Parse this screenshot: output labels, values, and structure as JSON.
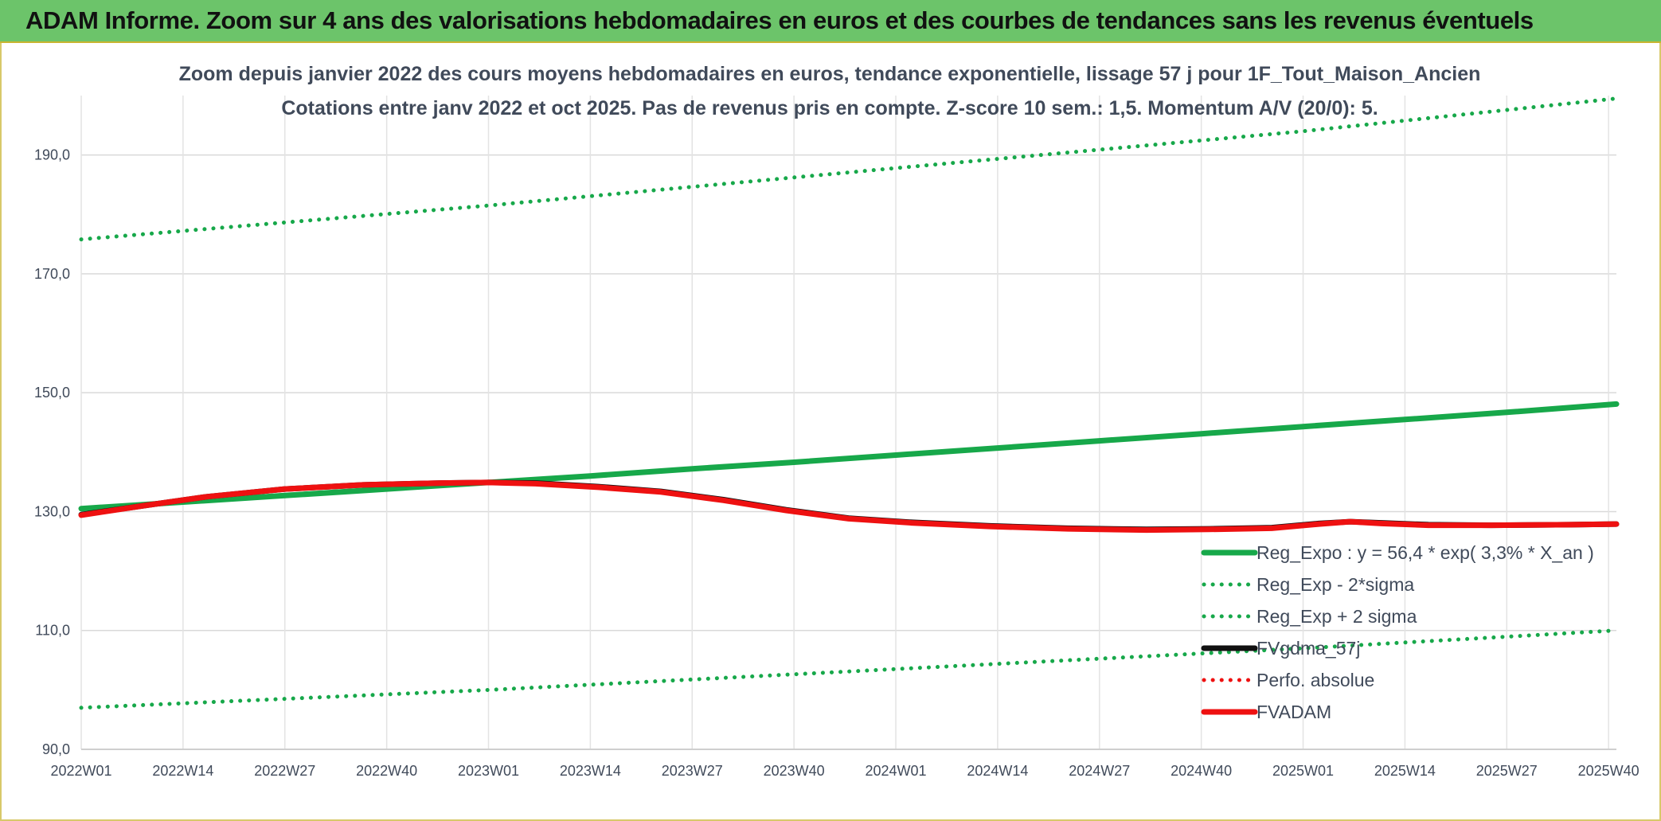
{
  "header": {
    "title": "ADAM Informe. Zoom sur 4 ans des valorisations hebdomadaires en euros et des courbes de tendances sans les revenus éventuels"
  },
  "colors": {
    "header_bg": "#6cc46a",
    "green": "#17a84a",
    "black": "#111111",
    "red": "#ee1111",
    "red_dotted": "#ee1111"
  },
  "chart_data": {
    "type": "line",
    "title_lines": [
      "Zoom depuis janvier 2022 des cours moyens hebdomadaires en euros, tendance exponentielle, lissage 57 j pour 1F_Tout_Maison_Ancien",
      "Cotations entre janv 2022 et oct 2025. Pas de revenus pris en compte. Z-score 10 sem.: 1,5. Momentum A/V (20/0): 5."
    ],
    "xlabel": "",
    "ylabel": "",
    "ylim": [
      90,
      200
    ],
    "y_ticks": [
      "90,0",
      "110,0",
      "130,0",
      "150,0",
      "170,0",
      "190,0"
    ],
    "y_tick_values": [
      90,
      110,
      130,
      150,
      170,
      190
    ],
    "x_range": [
      0,
      196
    ],
    "x_ticks": [
      "2022W01",
      "2022W14",
      "2022W27",
      "2022W40",
      "2023W01",
      "2023W14",
      "2023W27",
      "2023W40",
      "2024W01",
      "2024W14",
      "2024W27",
      "2024W40",
      "2025W01",
      "2025W14",
      "2025W27",
      "2025W40"
    ],
    "x_tick_weeks": [
      0,
      13,
      26,
      39,
      52,
      65,
      78,
      91,
      104,
      117,
      130,
      143,
      156,
      169,
      182,
      195
    ],
    "grid": true,
    "legend_position": "bottom-right",
    "series": [
      {
        "name": "Reg_Expo : y = 56,4 * exp( 3,3% *  X_an )",
        "style": "solid-thick",
        "color": "#17a84a",
        "x": [
          0,
          13,
          26,
          39,
          52,
          65,
          78,
          91,
          104,
          117,
          130,
          143,
          156,
          169,
          182,
          196
        ],
        "values": [
          130.5,
          131.6,
          132.7,
          133.8,
          134.9,
          136.0,
          137.2,
          138.3,
          139.5,
          140.7,
          141.9,
          143.1,
          144.3,
          145.5,
          146.7,
          148.1
        ]
      },
      {
        "name": "Reg_Exp - 2*sigma",
        "style": "dotted",
        "color": "#17a84a",
        "x": [
          0,
          52,
          104,
          156,
          196
        ],
        "values": [
          97.0,
          100.0,
          103.5,
          107.0,
          110.0
        ]
      },
      {
        "name": "Reg_Exp + 2 sigma",
        "style": "dotted",
        "color": "#17a84a",
        "x": [
          0,
          52,
          104,
          156,
          196
        ],
        "values": [
          175.8,
          181.5,
          187.8,
          194.0,
          199.5
        ]
      },
      {
        "name": "FVgdma_57j",
        "style": "solid-thick",
        "color": "#111111",
        "x": [
          0,
          8,
          16,
          26,
          36,
          46,
          52,
          58,
          66,
          74,
          82,
          90,
          98,
          106,
          116,
          126,
          136,
          144,
          152,
          158,
          162,
          166,
          172,
          180,
          190,
          196
        ],
        "values": [
          129.5,
          131.0,
          132.5,
          133.8,
          134.5,
          134.8,
          134.9,
          134.8,
          134.2,
          133.4,
          132.0,
          130.3,
          128.9,
          128.2,
          127.6,
          127.2,
          127.0,
          127.1,
          127.3,
          128.0,
          128.3,
          128.1,
          127.8,
          127.7,
          127.8,
          127.9
        ]
      },
      {
        "name": "Perfo. absolue",
        "style": "dotted",
        "color": "#ee1111",
        "x": [],
        "values": []
      },
      {
        "name": "FVADAM",
        "style": "solid-thick",
        "color": "#ee1111",
        "x": [
          0,
          8,
          16,
          26,
          36,
          46,
          52,
          58,
          66,
          74,
          82,
          90,
          98,
          106,
          116,
          126,
          136,
          144,
          152,
          158,
          162,
          166,
          172,
          180,
          190,
          196
        ],
        "values": [
          129.4,
          131.0,
          132.5,
          133.8,
          134.5,
          134.8,
          134.9,
          134.7,
          134.1,
          133.3,
          131.9,
          130.2,
          128.8,
          128.1,
          127.5,
          127.1,
          126.9,
          127.0,
          127.2,
          127.9,
          128.3,
          128.0,
          127.7,
          127.7,
          127.8,
          127.9
        ]
      }
    ]
  }
}
